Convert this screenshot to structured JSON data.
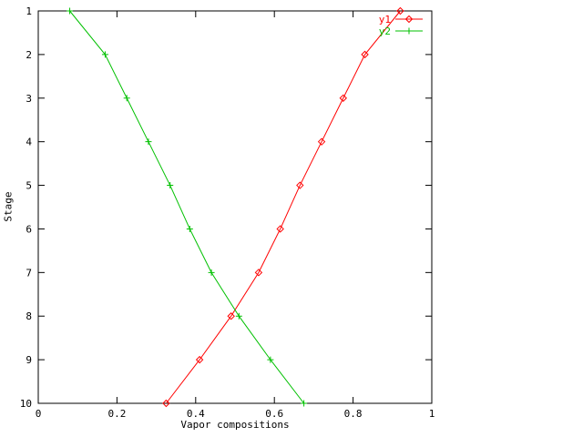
{
  "chart_data": {
    "type": "line",
    "title": "",
    "xlabel": "Vapor compositions",
    "ylabel": "Stage",
    "xlim": [
      0,
      1
    ],
    "ylim": [
      1,
      10
    ],
    "y_axis_inverted": true,
    "grid": false,
    "legend_position": "top-right-inside",
    "background_color": "#ffffff",
    "axis_color": "#000000",
    "x_ticks": [
      {
        "value": 0,
        "label": "0"
      },
      {
        "value": 0.2,
        "label": "0.2"
      },
      {
        "value": 0.4,
        "label": "0.4"
      },
      {
        "value": 0.6,
        "label": "0.6"
      },
      {
        "value": 0.8,
        "label": "0.8"
      },
      {
        "value": 1,
        "label": "1"
      }
    ],
    "y_ticks": [
      {
        "value": 1,
        "label": "1"
      },
      {
        "value": 2,
        "label": "2"
      },
      {
        "value": 3,
        "label": "3"
      },
      {
        "value": 4,
        "label": "4"
      },
      {
        "value": 5,
        "label": "5"
      },
      {
        "value": 6,
        "label": "6"
      },
      {
        "value": 7,
        "label": "7"
      },
      {
        "value": 8,
        "label": "8"
      },
      {
        "value": 9,
        "label": "9"
      },
      {
        "value": 10,
        "label": "10"
      }
    ],
    "stages": [
      1,
      2,
      3,
      4,
      5,
      6,
      7,
      8,
      9,
      10
    ],
    "series": [
      {
        "name": "y1",
        "color": "#ff0000",
        "marker": "diamond",
        "values": [
          0.92,
          0.83,
          0.775,
          0.72,
          0.665,
          0.615,
          0.56,
          0.49,
          0.41,
          0.325
        ]
      },
      {
        "name": "y2",
        "color": "#00c000",
        "marker": "plus",
        "values": [
          0.08,
          0.17,
          0.225,
          0.28,
          0.335,
          0.385,
          0.44,
          0.51,
          0.59,
          0.675
        ]
      }
    ]
  }
}
